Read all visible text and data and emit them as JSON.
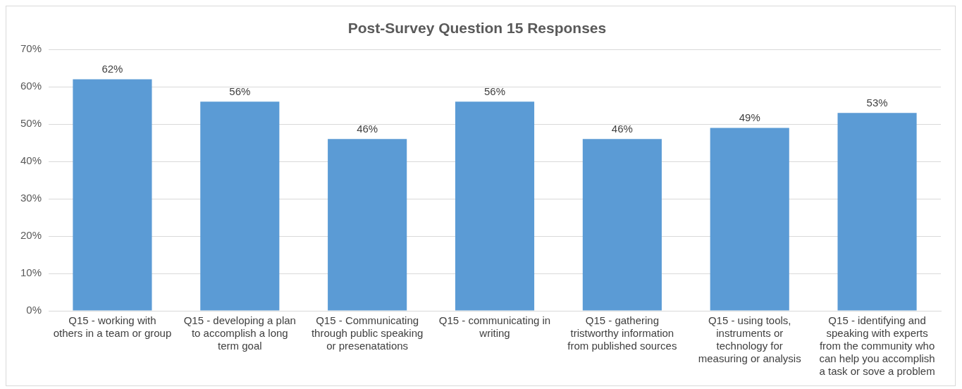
{
  "chart_data": {
    "type": "bar",
    "title": "Post-Survey Question 15 Responses",
    "categories": [
      "Q15 - working with others in a team or group",
      "Q15 - developing a plan to accomplish a long term goal",
      "Q15 - Communicating through public speaking or presenatations",
      "Q15 - communicating in writing",
      "Q15 - gathering tristworthy information from published sources",
      "Q15 - using tools, instruments or technology for measuring or analysis",
      "Q15 - identifying and speaking with experts from the community who can help you accomplish a task or sove a problem"
    ],
    "values": [
      62,
      56,
      46,
      56,
      46,
      49,
      53
    ],
    "value_labels": [
      "62%",
      "56%",
      "46%",
      "56%",
      "46%",
      "49%",
      "53%"
    ],
    "color": "#5b9bd5",
    "ylim": [
      0,
      70
    ],
    "yticks": [
      {
        "value": 0,
        "label": "0%"
      },
      {
        "value": 10,
        "label": "10%"
      },
      {
        "value": 20,
        "label": "20%"
      },
      {
        "value": 30,
        "label": "30%"
      },
      {
        "value": 40,
        "label": "40%"
      },
      {
        "value": 50,
        "label": "50%"
      },
      {
        "value": 60,
        "label": "60%"
      },
      {
        "value": 70,
        "label": "70%"
      }
    ],
    "grid": "y",
    "legend": false
  }
}
